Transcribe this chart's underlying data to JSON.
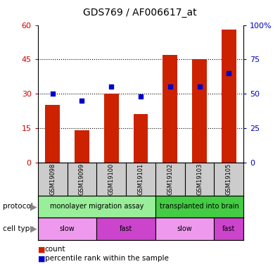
{
  "title": "GDS769 / AF006617_at",
  "samples": [
    "GSM19098",
    "GSM19099",
    "GSM19100",
    "GSM19101",
    "GSM19102",
    "GSM19103",
    "GSM19105"
  ],
  "bar_heights": [
    25,
    14,
    30,
    21,
    47,
    45,
    58
  ],
  "dot_values": [
    50,
    45,
    55,
    48,
    55,
    55,
    65
  ],
  "ylim_left": [
    0,
    60
  ],
  "ylim_right": [
    0,
    100
  ],
  "yticks_left": [
    0,
    15,
    30,
    45,
    60
  ],
  "yticks_right": [
    0,
    25,
    50,
    75,
    100
  ],
  "ytick_labels_right": [
    "0",
    "25",
    "50",
    "75",
    "100%"
  ],
  "bar_color": "#CC2200",
  "dot_color": "#0000CC",
  "protocol_groups": [
    {
      "label": "monolayer migration assay",
      "start": 0,
      "end": 4,
      "color": "#99EE99"
    },
    {
      "label": "transplanted into brain",
      "start": 4,
      "end": 7,
      "color": "#44CC44"
    }
  ],
  "celltype_groups": [
    {
      "label": "slow",
      "start": 0,
      "end": 2,
      "color": "#EE99EE"
    },
    {
      "label": "fast",
      "start": 2,
      "end": 4,
      "color": "#CC44CC"
    },
    {
      "label": "slow",
      "start": 4,
      "end": 6,
      "color": "#EE99EE"
    },
    {
      "label": "fast",
      "start": 6,
      "end": 7,
      "color": "#CC44CC"
    }
  ],
  "legend_items": [
    {
      "label": "count",
      "color": "#CC2200"
    },
    {
      "label": "percentile rank within the sample",
      "color": "#0000CC"
    }
  ],
  "background_color": "#FFFFFF",
  "plot_bg_color": "#FFFFFF",
  "axis_label_color_left": "#CC0000",
  "axis_label_color_right": "#0000BB",
  "sample_box_color": "#CCCCCC",
  "bar_width": 0.5,
  "dot_marker_size": 5
}
